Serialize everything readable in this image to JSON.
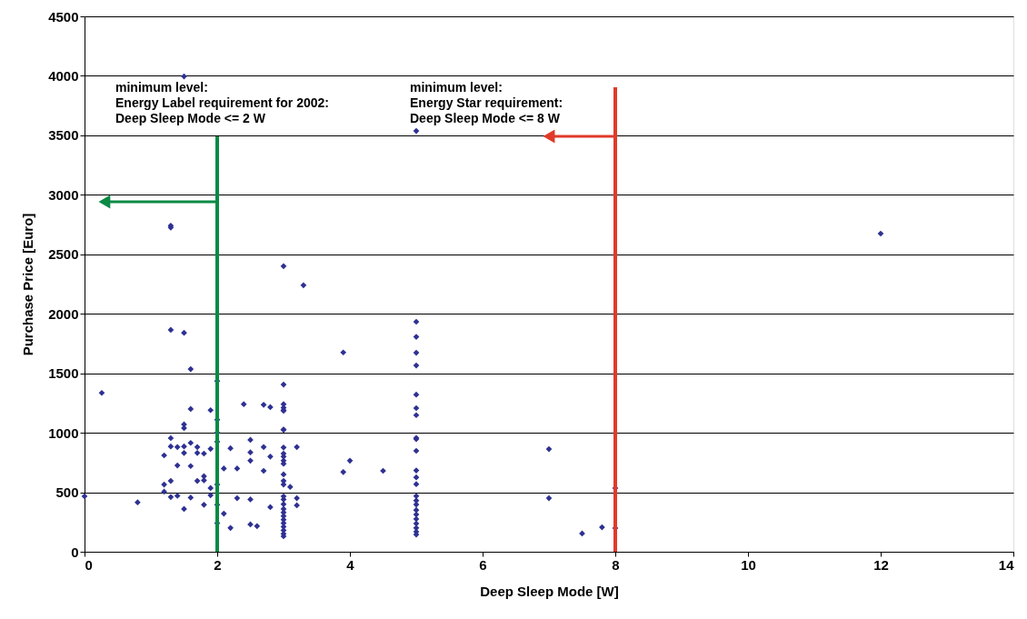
{
  "chart_data": {
    "type": "scatter",
    "xlabel": "Deep Sleep Mode [W]",
    "ylabel": "Purchase Price [Euro]",
    "xlim": [
      0,
      14
    ],
    "xticks": [
      0,
      2,
      4,
      6,
      8,
      10,
      12,
      14
    ],
    "ylim": [
      0,
      4500
    ],
    "yticks": [
      0,
      500,
      1000,
      1500,
      2000,
      2500,
      3000,
      3500,
      4000,
      4500
    ],
    "grid": "y",
    "marker": "diamond",
    "series": [
      {
        "color": "#2e3192",
        "x": [
          0,
          0.26,
          0.8,
          1.5,
          1.3,
          1.3,
          1.3,
          1.5,
          1.6,
          2.0,
          2.4,
          2.7,
          2.8,
          3.0,
          3.0,
          3.0,
          3.0,
          1.6,
          1.9,
          1.5,
          1.5,
          2.0,
          3.0,
          2.0,
          1.3,
          1.3,
          1.4,
          1.5,
          1.5,
          1.6,
          1.7,
          1.7,
          1.8,
          1.9,
          2.0,
          2.2,
          2.5,
          2.5,
          2.5,
          2.7,
          2.8,
          3.2,
          1.2,
          1.4,
          1.6,
          2.1,
          2.3,
          2.7,
          1.7,
          1.8,
          1.8,
          1.3,
          1.2,
          1.2,
          2.0,
          1.9,
          1.9,
          1.3,
          1.4,
          1.6,
          2.3,
          2.5,
          3.2,
          3.2,
          3.1,
          1.5,
          1.8,
          2.0,
          2.8,
          2.1,
          2.0,
          2.2,
          2.5,
          2.6,
          3.0,
          3.0,
          3.0,
          3.0,
          3.0,
          3.0,
          3.0,
          3.0,
          3.0,
          3.0,
          3.0,
          3.0,
          3.0,
          3.0,
          3.0,
          3.0,
          3.0,
          3.0,
          3.0,
          3.0,
          3.0,
          3.0,
          3.0,
          3.3,
          3.9,
          4.0,
          3.9,
          4.5,
          5.0,
          5.0,
          5.0,
          5.0,
          5.0,
          5.0,
          5.0,
          5.0,
          5.0,
          5.0,
          5.0,
          5.0,
          5.0,
          5.0,
          5.0,
          5.0,
          5.0,
          5.0,
          5.0,
          5.0,
          5.0,
          5.0,
          5.0,
          5.0,
          7.0,
          7.0,
          7.5,
          7.8,
          8.0,
          8.0,
          12.0
        ],
        "values": [
          466,
          1335,
          415,
          3995,
          2740,
          2725,
          1865,
          1840,
          1535,
          1435,
          1240,
          1235,
          1215,
          1240,
          1210,
          1190,
          1025,
          1200,
          1190,
          1070,
          1040,
          1110,
          1405,
          1000,
          955,
          885,
          880,
          885,
          830,
          915,
          880,
          830,
          825,
          865,
          925,
          870,
          940,
          835,
          765,
          880,
          800,
          880,
          810,
          725,
          720,
          700,
          700,
          680,
          595,
          635,
          600,
          595,
          565,
          505,
          565,
          535,
          475,
          460,
          470,
          455,
          450,
          440,
          450,
          390,
          545,
          360,
          395,
          395,
          375,
          320,
          240,
          200,
          230,
          215,
          2400,
          876,
          825,
          800,
          765,
          740,
          650,
          595,
          565,
          466,
          440,
          400,
          360,
          330,
          300,
          270,
          240,
          210,
          180,
          150,
          130,
          1027,
          1185,
          2240,
          1675,
          765,
          670,
          680,
          3537,
          1933,
          1806,
          1673,
          1566,
          1320,
          1207,
          1148,
          957,
          947,
          848,
          683,
          625,
          568,
          468,
          430,
          397,
          350,
          313,
          275,
          237,
          200,
          168,
          145,
          863,
          450,
          153,
          206,
          199,
          535,
          2674
        ]
      }
    ],
    "ref_lines": [
      {
        "axis": "x",
        "value": 2,
        "color": "#0a8a44",
        "label": "minimum level:\nEnergy Label requirement for 2002:\nDeep Sleep Mode <= 2 W"
      },
      {
        "axis": "x",
        "value": 8,
        "color": "#e03a2a",
        "label": "minimum level:\nEnergy Star requirement:\nDeep Sleep Mode <= 8 W"
      }
    ]
  }
}
